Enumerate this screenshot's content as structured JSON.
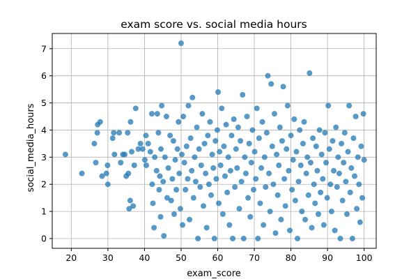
{
  "chart_data": {
    "type": "scatter",
    "title": "exam score vs. social media hours",
    "xlabel": "exam_score",
    "ylabel": "social_media_hours",
    "xlim": [
      14.8,
      103.3
    ],
    "ylim": [
      -0.36,
      7.56
    ],
    "xticks": [
      "20",
      "30",
      "40",
      "50",
      "60",
      "70",
      "80",
      "90",
      "100"
    ],
    "yticks": [
      "0",
      "1",
      "2",
      "3",
      "4",
      "5",
      "6",
      "7"
    ],
    "grid": true,
    "legend": "none",
    "marker_color": "#1f77b4",
    "marker_opacity": 0.75,
    "series": [
      {
        "points": [
          [
            18.4,
            3.1
          ],
          [
            22.9,
            2.4
          ],
          [
            26.3,
            3.5
          ],
          [
            26.7,
            2.8
          ],
          [
            27.1,
            3.9
          ],
          [
            27.2,
            4.2
          ],
          [
            27.9,
            4.3
          ],
          [
            28.4,
            2.3
          ],
          [
            29.6,
            2.4
          ],
          [
            29.9,
            2.7
          ],
          [
            30.0,
            2.0
          ],
          [
            31.3,
            3.7
          ],
          [
            31.6,
            3.9
          ],
          [
            31.8,
            3.1
          ],
          [
            33.1,
            3.9
          ],
          [
            33.5,
            2.8
          ],
          [
            34.1,
            3.1
          ],
          [
            34.6,
            3.1
          ],
          [
            35.0,
            2.3
          ],
          [
            35.4,
            3.9
          ],
          [
            35.6,
            2.4
          ],
          [
            35.8,
            1.1
          ],
          [
            36.1,
            1.4
          ],
          [
            36.2,
            4.3
          ],
          [
            36.5,
            3.2
          ],
          [
            36.9,
            1.2
          ],
          [
            37.2,
            2.7
          ],
          [
            37.6,
            4.8
          ],
          [
            38.3,
            3.3
          ],
          [
            38.9,
            3.5
          ],
          [
            39.5,
            3.3
          ],
          [
            40.1,
            2.9
          ],
          [
            40.4,
            3.8
          ],
          [
            40.5,
            2.7
          ],
          [
            41.0,
            3.5
          ],
          [
            41.6,
            3.2
          ],
          [
            42.0,
            4.6
          ],
          [
            42.1,
            2.0
          ],
          [
            42.3,
            1.3
          ],
          [
            42.6,
            0.4
          ],
          [
            42.8,
            3.0
          ],
          [
            43.3,
            2.5
          ],
          [
            43.5,
            4.6
          ],
          [
            43.8,
            3.9
          ],
          [
            44.0,
            1.8
          ],
          [
            44.2,
            2.3
          ],
          [
            44.4,
            0.8
          ],
          [
            44.5,
            3.3
          ],
          [
            44.7,
            4.9
          ],
          [
            45.1,
            2.1
          ],
          [
            45.3,
            0.1
          ],
          [
            45.6,
            3.0
          ],
          [
            46.0,
            4.5
          ],
          [
            46.2,
            1.5
          ],
          [
            46.5,
            2.6
          ],
          [
            47.0,
            3.8
          ],
          [
            47.3,
            1.4
          ],
          [
            47.6,
            2.2
          ],
          [
            47.9,
            3.6
          ],
          [
            48.1,
            0.9
          ],
          [
            48.4,
            2.9
          ],
          [
            48.7,
            1.8
          ],
          [
            49.0,
            3.3
          ],
          [
            49.3,
            4.3
          ],
          [
            49.5,
            2.4
          ],
          [
            49.8,
            1.1
          ],
          [
            50.0,
            7.2
          ],
          [
            50.2,
            3.1
          ],
          [
            50.4,
            0.5
          ],
          [
            50.6,
            4.5
          ],
          [
            50.9,
            2.8
          ],
          [
            51.2,
            1.8
          ],
          [
            51.5,
            3.4
          ],
          [
            51.8,
            2.2
          ],
          [
            52.0,
            4.9
          ],
          [
            52.3,
            0.7
          ],
          [
            52.6,
            3.7
          ],
          [
            52.9,
            2.5
          ],
          [
            53.1,
            5.2
          ],
          [
            53.4,
            1.5
          ],
          [
            53.7,
            3.0
          ],
          [
            54.0,
            2.1
          ],
          [
            54.3,
            4.1
          ],
          [
            54.6,
            0.0
          ],
          [
            54.9,
            3.3
          ],
          [
            55.2,
            1.9
          ],
          [
            55.5,
            2.7
          ],
          [
            55.8,
            4.6
          ],
          [
            56.1,
            1.2
          ],
          [
            56.4,
            3.5
          ],
          [
            56.7,
            2.4
          ],
          [
            57.0,
            0.4
          ],
          [
            57.3,
            3.8
          ],
          [
            57.6,
            2.0
          ],
          [
            57.9,
            4.3
          ],
          [
            58.2,
            1.6
          ],
          [
            58.5,
            3.1
          ],
          [
            58.8,
            2.6
          ],
          [
            59.1,
            0.0
          ],
          [
            59.4,
            3.6
          ],
          [
            59.6,
            2.2
          ],
          [
            59.9,
            4.0
          ],
          [
            60.1,
            5.4
          ],
          [
            60.3,
            1.3
          ],
          [
            60.5,
            3.2
          ],
          [
            60.8,
            2.7
          ],
          [
            61.1,
            4.8
          ],
          [
            61.4,
            0.9
          ],
          [
            61.7,
            3.4
          ],
          [
            62.0,
            2.3
          ],
          [
            62.3,
            4.2
          ],
          [
            62.6,
            1.7
          ],
          [
            62.9,
            3.0
          ],
          [
            63.2,
            0.5
          ],
          [
            63.5,
            2.5
          ],
          [
            63.8,
            3.8
          ],
          [
            64.1,
            0.0
          ],
          [
            64.4,
            4.4
          ],
          [
            64.7,
            1.9
          ],
          [
            65.0,
            3.3
          ],
          [
            65.3,
            2.6
          ],
          [
            65.6,
            4.1
          ],
          [
            65.9,
            1.1
          ],
          [
            66.2,
            3.6
          ],
          [
            66.5,
            2.1
          ],
          [
            66.8,
            5.3
          ],
          [
            67.1,
            0.0
          ],
          [
            67.4,
            3.0
          ],
          [
            67.7,
            2.4
          ],
          [
            68.0,
            4.5
          ],
          [
            68.3,
            1.5
          ],
          [
            68.6,
            3.5
          ],
          [
            68.9,
            0.8
          ],
          [
            69.2,
            2.8
          ],
          [
            69.5,
            4.0
          ],
          [
            69.8,
            1.8
          ],
          [
            70.1,
            3.2
          ],
          [
            70.4,
            2.2
          ],
          [
            70.7,
            4.8
          ],
          [
            71.0,
            0.0
          ],
          [
            71.3,
            3.7
          ],
          [
            71.6,
            1.3
          ],
          [
            71.9,
            2.6
          ],
          [
            72.2,
            4.3
          ],
          [
            72.5,
            0.5
          ],
          [
            72.8,
            3.0
          ],
          [
            73.1,
            1.9
          ],
          [
            73.4,
            3.9
          ],
          [
            73.7,
            6.0
          ],
          [
            74.0,
            2.4
          ],
          [
            74.3,
            1.0
          ],
          [
            74.6,
            5.7
          ],
          [
            74.9,
            3.4
          ],
          [
            75.2,
            2.0
          ],
          [
            75.5,
            4.6
          ],
          [
            75.8,
            0.2
          ],
          [
            76.1,
            3.1
          ],
          [
            76.4,
            1.6
          ],
          [
            76.7,
            2.7
          ],
          [
            77.0,
            4.1
          ],
          [
            77.3,
            0.7
          ],
          [
            77.6,
            3.6
          ],
          [
            77.9,
            5.6
          ],
          [
            78.2,
            2.2
          ],
          [
            78.5,
            1.2
          ],
          [
            78.8,
            3.3
          ],
          [
            79.1,
            4.9
          ],
          [
            79.4,
            2.5
          ],
          [
            79.7,
            0.3
          ],
          [
            80.0,
            3.8
          ],
          [
            80.3,
            1.8
          ],
          [
            80.6,
            2.9
          ],
          [
            80.9,
            4.4
          ],
          [
            81.2,
            1.4
          ],
          [
            81.5,
            3.2
          ],
          [
            81.8,
            0.0
          ],
          [
            82.1,
            2.1
          ],
          [
            82.4,
            4.0
          ],
          [
            82.7,
            2.7
          ],
          [
            83.0,
            1.0
          ],
          [
            83.3,
            3.5
          ],
          [
            83.6,
            4.3
          ],
          [
            83.9,
            0.7
          ],
          [
            84.2,
            2.4
          ],
          [
            84.5,
            3.0
          ],
          [
            84.8,
            1.6
          ],
          [
            85.1,
            6.1
          ],
          [
            85.4,
            2.8
          ],
          [
            85.7,
            0.4
          ],
          [
            86.0,
            3.7
          ],
          [
            86.3,
            2.0
          ],
          [
            86.6,
            1.3
          ],
          [
            86.9,
            3.4
          ],
          [
            87.2,
            2.5
          ],
          [
            87.5,
            0.9
          ],
          [
            87.8,
            4.0
          ],
          [
            88.1,
            1.7
          ],
          [
            88.4,
            3.1
          ],
          [
            88.7,
            2.2
          ],
          [
            89.0,
            0.5
          ],
          [
            89.3,
            3.9
          ],
          [
            89.6,
            2.8
          ],
          [
            89.9,
            1.5
          ],
          [
            90.2,
            4.9
          ],
          [
            90.5,
            3.3
          ],
          [
            90.8,
            2.0
          ],
          [
            91.1,
            1.0
          ],
          [
            91.4,
            3.6
          ],
          [
            91.7,
            2.5
          ],
          [
            92.0,
            0.3
          ],
          [
            92.3,
            4.1
          ],
          [
            92.6,
            1.9
          ],
          [
            92.9,
            3.0
          ],
          [
            93.2,
            2.4
          ],
          [
            93.5,
            0.0
          ],
          [
            93.8,
            3.5
          ],
          [
            94.1,
            1.4
          ],
          [
            94.4,
            2.8
          ],
          [
            94.7,
            3.9
          ],
          [
            95.0,
            2.1
          ],
          [
            95.3,
            0.9
          ],
          [
            95.6,
            3.2
          ],
          [
            95.9,
            4.9
          ],
          [
            96.2,
            1.7
          ],
          [
            96.5,
            2.6
          ],
          [
            96.8,
            0.0
          ],
          [
            97.1,
            3.7
          ],
          [
            97.4,
            2.3
          ],
          [
            97.7,
            4.5
          ],
          [
            98.0,
            1.1
          ],
          [
            98.3,
            3.0
          ],
          [
            98.6,
            2.0
          ],
          [
            98.9,
            0.6
          ],
          [
            99.2,
            3.4
          ],
          [
            99.5,
            1.5
          ],
          [
            99.8,
            4.6
          ],
          [
            100.0,
            2.9
          ]
        ]
      }
    ]
  }
}
